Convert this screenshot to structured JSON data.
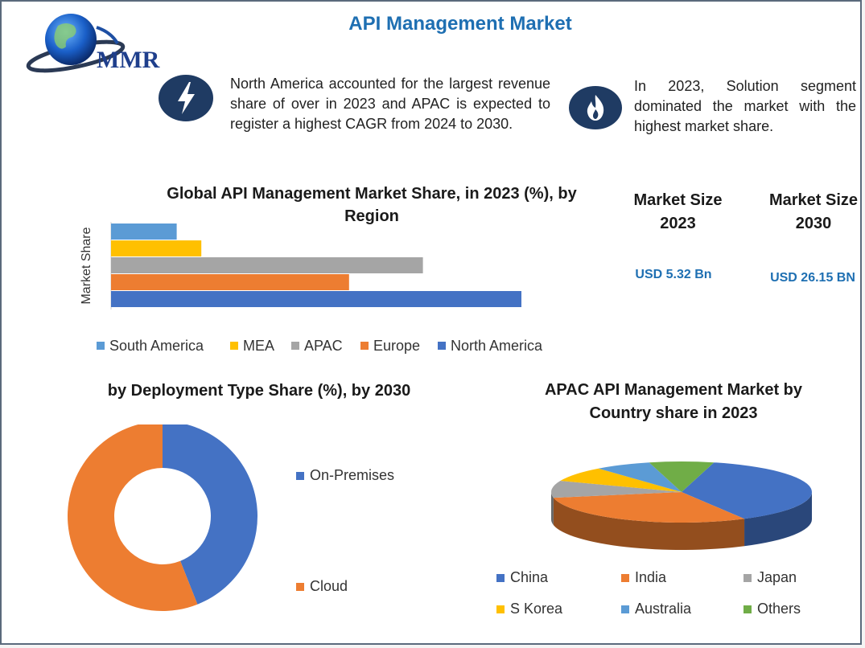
{
  "header": {
    "title": "API Management Market",
    "logo_text": "MMR"
  },
  "info": [
    {
      "icon": "lightning-bolt-icon",
      "text": "North America accounted for the largest revenue share of over in 2023 and APAC is expected to register a highest CAGR from 2024 to 2030."
    },
    {
      "icon": "flame-icon",
      "text": "In 2023, Solution segment dominated the market with the highest market share."
    }
  ],
  "kpis": [
    {
      "title": "Market Size 2023",
      "value": "USD 5.32 Bn"
    },
    {
      "title": "Market Size 2030",
      "value": "USD 26.15 BN"
    }
  ],
  "colors": {
    "brand_blue": "#1e6fb2",
    "icon_navy": "#1f3b63",
    "blue": "#4472c4",
    "orange": "#ed7d31",
    "gray": "#a5a5a5",
    "yellow": "#ffc000",
    "light_blue": "#5b9bd5",
    "green": "#70ad47"
  },
  "chart_data": [
    {
      "type": "bar",
      "orientation": "horizontal",
      "title": "Global  API Management Market Share, in 2023 (%), by Region",
      "ylabel": "Market Share",
      "xlabel": "",
      "categories": [
        "South America",
        "MEA",
        "APAC",
        "Europe",
        "North America"
      ],
      "values": [
        8,
        11,
        38,
        29,
        50
      ],
      "xlim": [
        0,
        50
      ],
      "colors": [
        "#5b9bd5",
        "#ffc000",
        "#a5a5a5",
        "#ed7d31",
        "#4472c4"
      ],
      "legend_position": "bottom"
    },
    {
      "type": "pie",
      "variant": "donut",
      "title": "by Deployment Type Share (%), by 2030",
      "categories": [
        "On-Premises",
        "Cloud"
      ],
      "values": [
        44,
        56
      ],
      "colors": [
        "#4472c4",
        "#ed7d31"
      ],
      "legend_position": "right"
    },
    {
      "type": "pie",
      "variant": "3d",
      "title": "APAC  API Management Market by Country share in 2023",
      "categories": [
        "China",
        "India",
        "Japan",
        "S Korea",
        "Australia",
        "Others"
      ],
      "values": [
        38,
        30,
        9,
        8,
        7,
        8
      ],
      "colors": [
        "#4472c4",
        "#ed7d31",
        "#a5a5a5",
        "#ffc000",
        "#5b9bd5",
        "#70ad47"
      ],
      "legend_position": "bottom"
    }
  ]
}
